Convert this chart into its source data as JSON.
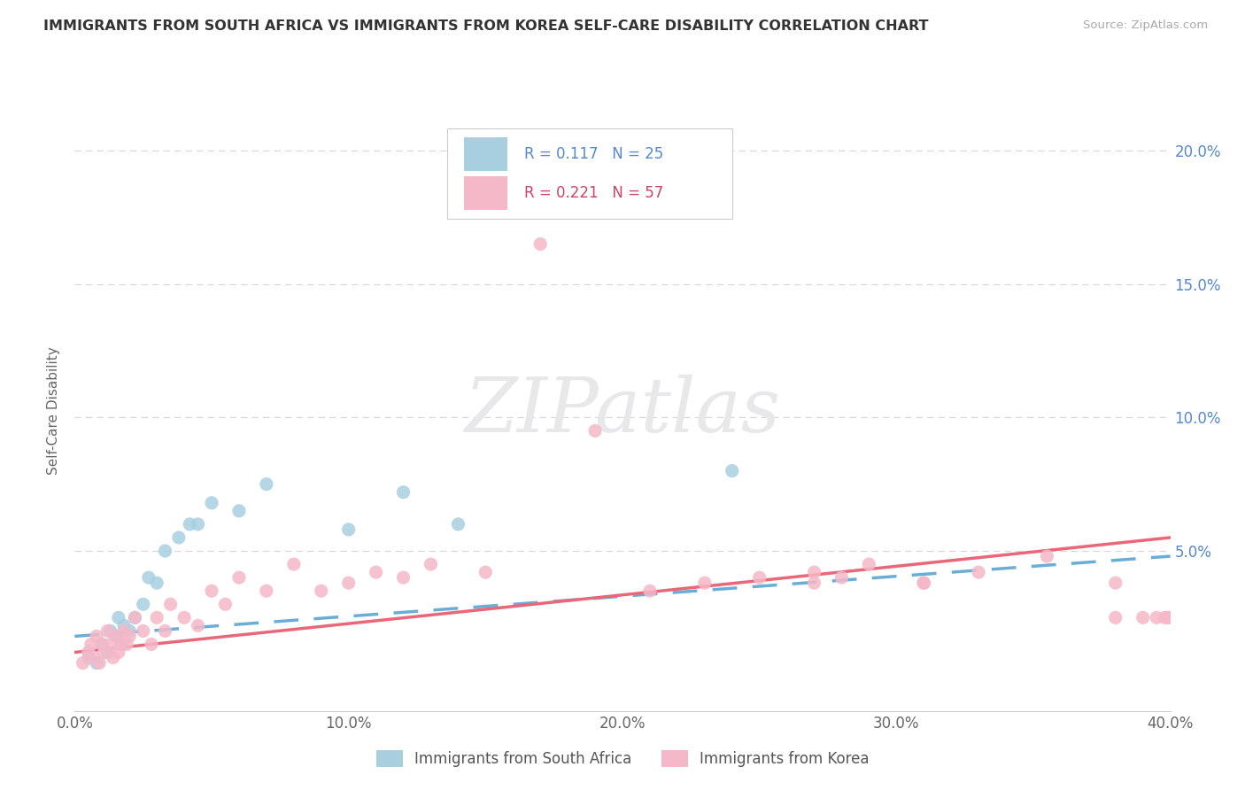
{
  "title": "IMMIGRANTS FROM SOUTH AFRICA VS IMMIGRANTS FROM KOREA SELF-CARE DISABILITY CORRELATION CHART",
  "source": "Source: ZipAtlas.com",
  "ylabel": "Self-Care Disability",
  "xlim": [
    0.0,
    0.4
  ],
  "ylim": [
    -0.01,
    0.215
  ],
  "xtick_labels": [
    "0.0%",
    "10.0%",
    "20.0%",
    "30.0%",
    "40.0%"
  ],
  "xtick_vals": [
    0.0,
    0.1,
    0.2,
    0.3,
    0.4
  ],
  "ytick_labels": [
    "5.0%",
    "10.0%",
    "15.0%",
    "20.0%"
  ],
  "ytick_vals": [
    0.05,
    0.1,
    0.15,
    0.2
  ],
  "series1_color": "#a8cfe0",
  "series2_color": "#f5b8c8",
  "line1_color": "#6aaed6",
  "line2_color": "#e8687a",
  "R1": 0.117,
  "N1": 25,
  "R2": 0.221,
  "N2": 57,
  "legend1": "Immigrants from South Africa",
  "legend2": "Immigrants from Korea",
  "south_africa_x": [
    0.005,
    0.008,
    0.01,
    0.012,
    0.013,
    0.015,
    0.016,
    0.017,
    0.018,
    0.02,
    0.022,
    0.025,
    0.027,
    0.03,
    0.033,
    0.038,
    0.042,
    0.045,
    0.05,
    0.06,
    0.07,
    0.1,
    0.12,
    0.14,
    0.24
  ],
  "south_africa_y": [
    0.01,
    0.008,
    0.015,
    0.012,
    0.02,
    0.018,
    0.025,
    0.015,
    0.022,
    0.02,
    0.025,
    0.03,
    0.04,
    0.038,
    0.05,
    0.055,
    0.06,
    0.06,
    0.068,
    0.065,
    0.075,
    0.058,
    0.072,
    0.06,
    0.08
  ],
  "korea_x": [
    0.003,
    0.005,
    0.006,
    0.007,
    0.008,
    0.009,
    0.01,
    0.011,
    0.012,
    0.013,
    0.014,
    0.015,
    0.016,
    0.017,
    0.018,
    0.019,
    0.02,
    0.022,
    0.025,
    0.028,
    0.03,
    0.033,
    0.035,
    0.04,
    0.045,
    0.05,
    0.055,
    0.06,
    0.07,
    0.08,
    0.09,
    0.1,
    0.11,
    0.12,
    0.13,
    0.15,
    0.17,
    0.19,
    0.21,
    0.23,
    0.25,
    0.27,
    0.29,
    0.31,
    0.33,
    0.355,
    0.38,
    0.39,
    0.395,
    0.398,
    0.399,
    0.4,
    0.31,
    0.27,
    0.38,
    0.28,
    0.31
  ],
  "korea_y": [
    0.008,
    0.012,
    0.015,
    0.01,
    0.018,
    0.008,
    0.015,
    0.012,
    0.02,
    0.015,
    0.01,
    0.018,
    0.012,
    0.015,
    0.02,
    0.015,
    0.018,
    0.025,
    0.02,
    0.015,
    0.025,
    0.02,
    0.03,
    0.025,
    0.022,
    0.035,
    0.03,
    0.04,
    0.035,
    0.045,
    0.035,
    0.038,
    0.042,
    0.04,
    0.045,
    0.042,
    0.165,
    0.095,
    0.035,
    0.038,
    0.04,
    0.042,
    0.045,
    0.038,
    0.042,
    0.048,
    0.038,
    0.025,
    0.025,
    0.025,
    0.025,
    0.025,
    0.038,
    0.038,
    0.025,
    0.04,
    0.038
  ],
  "background_color": "#ffffff",
  "grid_color": "#d8d8d8",
  "watermark_text": "ZIPatlas",
  "watermark_color": "#e8e8ea"
}
